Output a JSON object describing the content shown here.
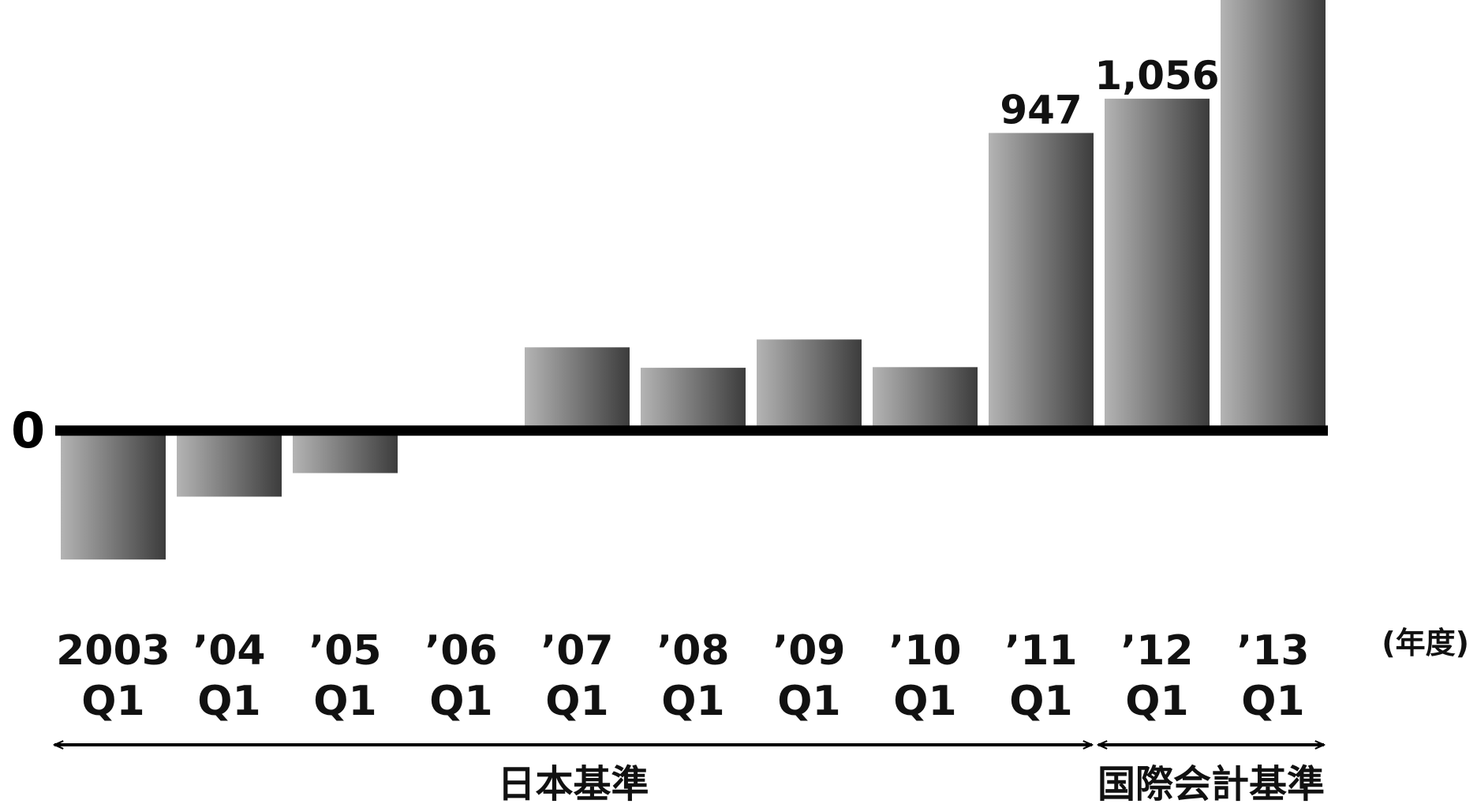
{
  "chart_data": {
    "type": "bar",
    "categories": [
      [
        "2003",
        "Q1"
      ],
      [
        "’04",
        "Q1"
      ],
      [
        "’05",
        "Q1"
      ],
      [
        "’06",
        "Q1"
      ],
      [
        "’07",
        "Q1"
      ],
      [
        "’08",
        "Q1"
      ],
      [
        "’09",
        "Q1"
      ],
      [
        "’10",
        "Q1"
      ],
      [
        "’11",
        "Q1"
      ],
      [
        "’12",
        "Q1"
      ],
      [
        "’13",
        "Q1"
      ]
    ],
    "values": [
      -410,
      -210,
      -135,
      0,
      265,
      200,
      290,
      202,
      947,
      1056,
      1370
    ],
    "data_labels": [
      "",
      "",
      "",
      "",
      "",
      "",
      "",
      "",
      "947",
      "1,056",
      ""
    ],
    "zero_label": "0",
    "unit_label": "(年度)",
    "ylim": [
      -500,
      1370
    ],
    "standards": [
      {
        "label": "日本基準",
        "from_index": 0,
        "to_index": 8
      },
      {
        "label": "国際会計基準",
        "from_index": 9,
        "to_index": 10
      }
    ],
    "colors": {
      "bar_light": "#b4b4b4",
      "bar_dark": "#3c3c3c",
      "axis": "#000000"
    }
  }
}
